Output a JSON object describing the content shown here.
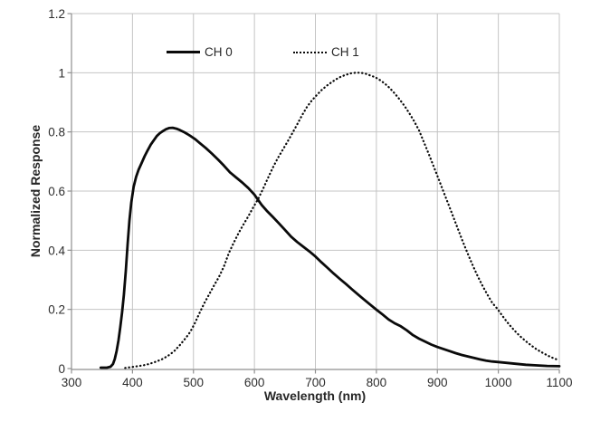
{
  "chart_data": {
    "type": "line",
    "title": "",
    "xlabel": "Wavelength (nm)",
    "ylabel": "Normalized Response",
    "xlim": [
      300,
      1100
    ],
    "ylim": [
      0,
      1.2
    ],
    "x_ticks": [
      300,
      400,
      500,
      600,
      700,
      800,
      900,
      1000,
      1100
    ],
    "x_tick_labels": [
      "300",
      "400",
      "500",
      "600",
      "700",
      "800",
      "900",
      "1000",
      "1100"
    ],
    "y_ticks": [
      0,
      0.2,
      0.4,
      0.6,
      0.8,
      1,
      1.2
    ],
    "y_tick_labels": [
      "0",
      "0.2",
      "0.4",
      "0.6",
      "0.8",
      "1",
      "1.2"
    ],
    "grid": true,
    "legend": {
      "position": "top-inside",
      "entries": [
        "CH 0",
        "CH 1"
      ]
    },
    "colors": {
      "background": "#ffffff",
      "gridline": "#c4c4c4",
      "axis": "#8f8f8f",
      "text": "#2d2d2d",
      "curve": "#0a0a0a"
    },
    "series": [
      {
        "name": "CH 0",
        "line_style": "solid",
        "color": "#0a0a0a",
        "points": [
          [
            348,
            0.003
          ],
          [
            358,
            0.003
          ],
          [
            364,
            0.006
          ],
          [
            368,
            0.015
          ],
          [
            371,
            0.032
          ],
          [
            374,
            0.06
          ],
          [
            377,
            0.095
          ],
          [
            380,
            0.14
          ],
          [
            383,
            0.19
          ],
          [
            386,
            0.25
          ],
          [
            389,
            0.33
          ],
          [
            392,
            0.42
          ],
          [
            395,
            0.5
          ],
          [
            398,
            0.56
          ],
          [
            402,
            0.615
          ],
          [
            406,
            0.648
          ],
          [
            410,
            0.672
          ],
          [
            415,
            0.695
          ],
          [
            420,
            0.718
          ],
          [
            425,
            0.738
          ],
          [
            430,
            0.757
          ],
          [
            435,
            0.772
          ],
          [
            440,
            0.786
          ],
          [
            445,
            0.796
          ],
          [
            450,
            0.803
          ],
          [
            455,
            0.809
          ],
          [
            460,
            0.813
          ],
          [
            466,
            0.814
          ],
          [
            472,
            0.811
          ],
          [
            478,
            0.806
          ],
          [
            484,
            0.8
          ],
          [
            490,
            0.793
          ],
          [
            496,
            0.785
          ],
          [
            503,
            0.775
          ],
          [
            510,
            0.763
          ],
          [
            520,
            0.746
          ],
          [
            530,
            0.727
          ],
          [
            540,
            0.707
          ],
          [
            550,
            0.686
          ],
          [
            560,
            0.663
          ],
          [
            570,
            0.646
          ],
          [
            580,
            0.629
          ],
          [
            590,
            0.61
          ],
          [
            600,
            0.588
          ],
          [
            606,
            0.57
          ],
          [
            612,
            0.553
          ],
          [
            620,
            0.534
          ],
          [
            630,
            0.513
          ],
          [
            640,
            0.491
          ],
          [
            650,
            0.469
          ],
          [
            660,
            0.446
          ],
          [
            670,
            0.428
          ],
          [
            680,
            0.412
          ],
          [
            690,
            0.396
          ],
          [
            700,
            0.379
          ],
          [
            710,
            0.359
          ],
          [
            720,
            0.34
          ],
          [
            730,
            0.321
          ],
          [
            740,
            0.303
          ],
          [
            750,
            0.286
          ],
          [
            760,
            0.268
          ],
          [
            770,
            0.25
          ],
          [
            780,
            0.233
          ],
          [
            790,
            0.216
          ],
          [
            800,
            0.199
          ],
          [
            810,
            0.183
          ],
          [
            820,
            0.166
          ],
          [
            830,
            0.153
          ],
          [
            840,
            0.143
          ],
          [
            850,
            0.129
          ],
          [
            860,
            0.113
          ],
          [
            870,
            0.101
          ],
          [
            880,
            0.091
          ],
          [
            890,
            0.081
          ],
          [
            900,
            0.073
          ],
          [
            910,
            0.066
          ],
          [
            920,
            0.059
          ],
          [
            930,
            0.052
          ],
          [
            940,
            0.046
          ],
          [
            950,
            0.041
          ],
          [
            960,
            0.036
          ],
          [
            970,
            0.031
          ],
          [
            980,
            0.027
          ],
          [
            990,
            0.024
          ],
          [
            1000,
            0.022
          ],
          [
            1015,
            0.019
          ],
          [
            1030,
            0.016
          ],
          [
            1045,
            0.013
          ],
          [
            1060,
            0.011
          ],
          [
            1080,
            0.009
          ],
          [
            1100,
            0.008
          ]
        ]
      },
      {
        "name": "CH 1",
        "line_style": "dotted",
        "color": "#0a0a0a",
        "points": [
          [
            388,
            0.002
          ],
          [
            398,
            0.005
          ],
          [
            408,
            0.008
          ],
          [
            418,
            0.011
          ],
          [
            428,
            0.016
          ],
          [
            438,
            0.023
          ],
          [
            448,
            0.031
          ],
          [
            458,
            0.043
          ],
          [
            468,
            0.058
          ],
          [
            478,
            0.08
          ],
          [
            488,
            0.105
          ],
          [
            495,
            0.125
          ],
          [
            502,
            0.152
          ],
          [
            510,
            0.188
          ],
          [
            518,
            0.222
          ],
          [
            526,
            0.252
          ],
          [
            534,
            0.282
          ],
          [
            542,
            0.31
          ],
          [
            550,
            0.345
          ],
          [
            558,
            0.39
          ],
          [
            566,
            0.425
          ],
          [
            574,
            0.458
          ],
          [
            582,
            0.487
          ],
          [
            590,
            0.515
          ],
          [
            598,
            0.545
          ],
          [
            606,
            0.573
          ],
          [
            614,
            0.607
          ],
          [
            622,
            0.643
          ],
          [
            630,
            0.678
          ],
          [
            638,
            0.71
          ],
          [
            646,
            0.738
          ],
          [
            654,
            0.766
          ],
          [
            662,
            0.795
          ],
          [
            670,
            0.825
          ],
          [
            678,
            0.856
          ],
          [
            686,
            0.884
          ],
          [
            694,
            0.906
          ],
          [
            702,
            0.924
          ],
          [
            710,
            0.941
          ],
          [
            718,
            0.955
          ],
          [
            726,
            0.967
          ],
          [
            734,
            0.978
          ],
          [
            742,
            0.987
          ],
          [
            750,
            0.993
          ],
          [
            758,
            0.998
          ],
          [
            766,
            1.0
          ],
          [
            774,
            1.0
          ],
          [
            782,
            0.997
          ],
          [
            790,
            0.991
          ],
          [
            798,
            0.985
          ],
          [
            806,
            0.975
          ],
          [
            814,
            0.963
          ],
          [
            822,
            0.948
          ],
          [
            830,
            0.93
          ],
          [
            838,
            0.91
          ],
          [
            846,
            0.888
          ],
          [
            854,
            0.863
          ],
          [
            862,
            0.836
          ],
          [
            870,
            0.805
          ],
          [
            878,
            0.765
          ],
          [
            886,
            0.725
          ],
          [
            894,
            0.683
          ],
          [
            902,
            0.641
          ],
          [
            910,
            0.598
          ],
          [
            918,
            0.556
          ],
          [
            926,
            0.513
          ],
          [
            934,
            0.47
          ],
          [
            942,
            0.428
          ],
          [
            950,
            0.388
          ],
          [
            958,
            0.349
          ],
          [
            966,
            0.313
          ],
          [
            974,
            0.28
          ],
          [
            982,
            0.25
          ],
          [
            990,
            0.222
          ],
          [
            998,
            0.203
          ],
          [
            1006,
            0.18
          ],
          [
            1014,
            0.158
          ],
          [
            1022,
            0.139
          ],
          [
            1030,
            0.121
          ],
          [
            1038,
            0.105
          ],
          [
            1046,
            0.091
          ],
          [
            1054,
            0.078
          ],
          [
            1062,
            0.066
          ],
          [
            1070,
            0.056
          ],
          [
            1078,
            0.047
          ],
          [
            1086,
            0.039
          ],
          [
            1094,
            0.032
          ],
          [
            1100,
            0.028
          ]
        ]
      }
    ]
  }
}
